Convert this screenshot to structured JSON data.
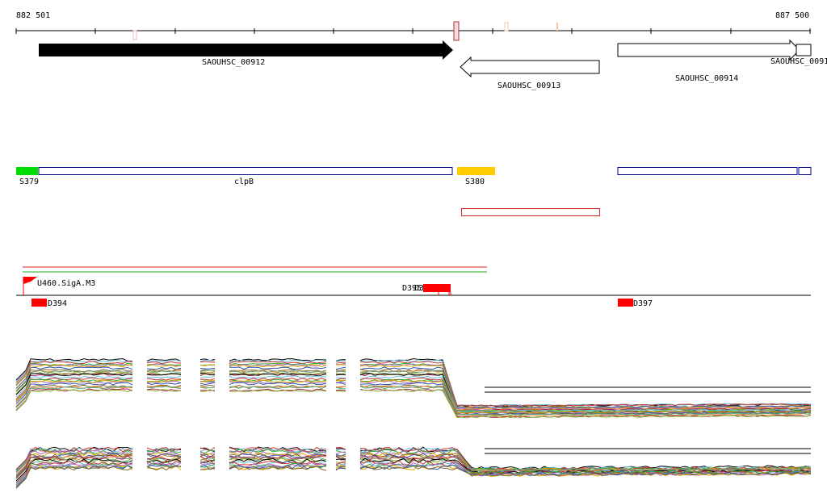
{
  "ruler": {
    "start_label": "882 501",
    "end_label": "887 500"
  },
  "genes": [
    {
      "name": "SAOUHSC_00912",
      "strand": "+",
      "style": "filled"
    },
    {
      "name": "SAOUHSC_00913",
      "strand": "-",
      "style": "outline"
    },
    {
      "name": "SAOUHSC_00914",
      "strand": "+",
      "style": "outline"
    },
    {
      "name": "SAOUHSC_0091",
      "strand": "+",
      "style": "outline"
    }
  ],
  "features": [
    {
      "name": "S379",
      "color": "#00dd00"
    },
    {
      "name": "clpB",
      "color": "#000088"
    },
    {
      "name": "S380",
      "color": "#ffcc00"
    }
  ],
  "promoter": {
    "name": "U460.SigA.M3",
    "color": "#ff0000"
  },
  "sites": [
    {
      "name": "D394",
      "color": "#ff0000"
    },
    {
      "name": "D395",
      "color": "#ff0000"
    },
    {
      "name": "D396",
      "color": "#ff0000"
    },
    {
      "name": "D397",
      "color": "#ff0000"
    }
  ],
  "tracks": {
    "line_colors": [
      "#000000",
      "#66bbdd",
      "#cc3333",
      "#33aa33",
      "#aa66cc",
      "#ddaa00",
      "#3355aa",
      "#886633",
      "#ee8833",
      "#55aa88",
      "#aa2255",
      "#88aa22"
    ]
  }
}
